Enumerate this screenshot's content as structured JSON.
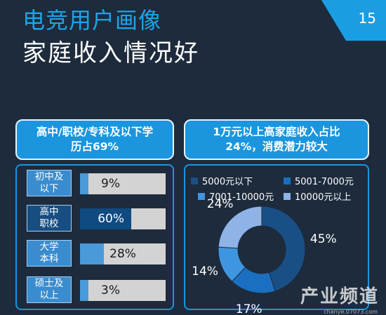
{
  "header": {
    "title_line1": "电竞用户画像",
    "title_line2": "家庭收入情况好",
    "page_number": "15"
  },
  "left_panel": {
    "header_line1": "高中/职校/专科及以下学",
    "header_line2": "历占69%"
  },
  "right_panel": {
    "header_line1": "1万元以上高家庭收入占比",
    "header_line2": "24%，消费潜力较大"
  },
  "watermark": {
    "text": "产业频道",
    "sub": "chanye.07073.com"
  },
  "chart_data": [
    {
      "type": "bar",
      "orientation": "horizontal",
      "categories": [
        [
          "初中及",
          "以下"
        ],
        [
          "高中",
          "职校"
        ],
        [
          "大学",
          "本科"
        ],
        [
          "硕士及",
          "以上"
        ]
      ],
      "values": [
        9,
        60,
        28,
        3
      ],
      "value_labels": [
        "9%",
        "60%",
        "28%",
        "3%"
      ],
      "xlim": [
        0,
        100
      ],
      "highlight_index": 1,
      "colors": {
        "fill": "#4a9ad9",
        "highlight": "#0f4a80",
        "track": "#d3d3d3"
      }
    },
    {
      "type": "pie",
      "donut": true,
      "legend": [
        {
          "label": "5000元以下",
          "color": "#1a4f85"
        },
        {
          "label": "5001-7000元",
          "color": "#1a6fc0"
        },
        {
          "label": "7001-10000元",
          "color": "#3f96e0"
        },
        {
          "label": "10000元以上",
          "color": "#8fb3e6"
        }
      ],
      "values": [
        45,
        17,
        14,
        24
      ],
      "value_labels": [
        "45%",
        "17%",
        "14%",
        "24%"
      ],
      "legend_position": "top"
    }
  ]
}
